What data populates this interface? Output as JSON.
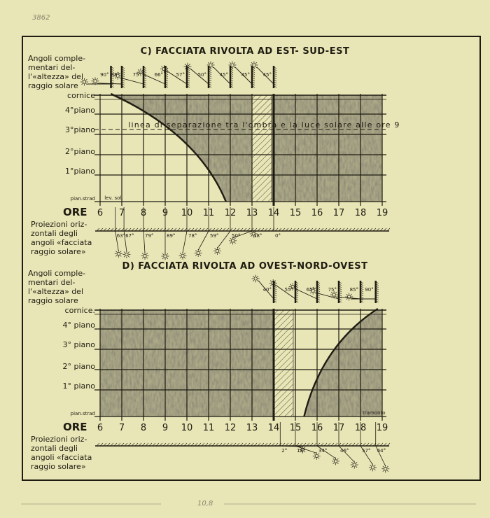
{
  "sheet": {
    "pencil_number_top": "3862",
    "pencil_note_bottom": "10,8"
  },
  "colors": {
    "paper": "#e8e5b6",
    "ink": "#1e1c12",
    "shade": "#5e5c46"
  },
  "hours": [
    "6",
    "7",
    "8",
    "9",
    "10",
    "11",
    "12",
    "13",
    "14",
    "15",
    "16",
    "17",
    "18",
    "19"
  ],
  "ore_label": "ORE",
  "panel_c": {
    "title": "C) FACCIATA RIVOLTA AD EST- SUD-EST",
    "angles_label": [
      "Angoli comple-",
      "mentari del-",
      "l'«altezza» del",
      "raggio solare"
    ],
    "altitude_angles": [
      {
        "hour": 6.5,
        "angle": "90°"
      },
      {
        "hour": 7,
        "angle": "88°"
      },
      {
        "hour": 8,
        "angle": "75°"
      },
      {
        "hour": 9,
        "angle": "66°"
      },
      {
        "hour": 10,
        "angle": "57°"
      },
      {
        "hour": 11,
        "angle": "50°"
      },
      {
        "hour": 12,
        "angle": "45°"
      },
      {
        "hour": 13,
        "angle": "45°"
      },
      {
        "hour": 14,
        "angle": "45°"
      }
    ],
    "floors": [
      "cornice",
      "4°piano",
      "3°piano",
      "2°piano",
      "1°piano",
      "pian.strad"
    ],
    "separation_line_label": "linea di separazione tra l'ombra e la luce solare alle ore 9",
    "small_note": "lev. sol.",
    "hatched_hours": [
      13,
      14
    ],
    "shadow_curve_hours": [
      6.5,
      11.8
    ],
    "projection_label": [
      "Proiezioni oriz-",
      "zontali degli",
      "angoli «facciata",
      "raggio solare»"
    ],
    "projection_angles": [
      {
        "hour": 6.7,
        "angle": "63°"
      },
      {
        "hour": 7.1,
        "angle": "67°"
      },
      {
        "hour": 8,
        "angle": "79°"
      },
      {
        "hour": 9,
        "angle": "89°"
      },
      {
        "hour": 10,
        "angle": "78°"
      },
      {
        "hour": 11,
        "angle": "59°"
      },
      {
        "hour": 12,
        "angle": "50°"
      },
      {
        "hour": 13,
        "angle": "18°"
      },
      {
        "hour": 14,
        "angle": "0°"
      }
    ]
  },
  "panel_d": {
    "title": "D) FACCIATA RIVOLTA AD OVEST-NORD-OVEST",
    "angles_label": [
      "Angoli comple-",
      "mentari del-",
      "l'«altezza» del",
      "raggio solare"
    ],
    "altitude_angles": [
      {
        "hour": 14,
        "angle": "40°"
      },
      {
        "hour": 15,
        "angle": "55°"
      },
      {
        "hour": 16,
        "angle": "65°"
      },
      {
        "hour": 17,
        "angle": "75°"
      },
      {
        "hour": 18,
        "angle": "85°"
      },
      {
        "hour": 18.7,
        "angle": "90°"
      }
    ],
    "floors": [
      "cornice.",
      "4° piano",
      "3° piano",
      "2° piano",
      "1° piano",
      "pian.strad"
    ],
    "small_note": "tramonto",
    "hatched_hours": [
      14,
      15
    ],
    "shadow_curve_hours": [
      15.4,
      18.8
    ],
    "projection_label": [
      "Proiezioni oriz-",
      "zontali degli",
      "angoli «facciata",
      "raggio solare»"
    ],
    "projection_angles": [
      {
        "hour": 14.3,
        "angle": "2°"
      },
      {
        "hour": 15,
        "angle": "19°"
      },
      {
        "hour": 16,
        "angle": "34°"
      },
      {
        "hour": 17,
        "angle": "46°"
      },
      {
        "hour": 18,
        "angle": "57°"
      },
      {
        "hour": 18.7,
        "angle": "64°"
      }
    ]
  }
}
